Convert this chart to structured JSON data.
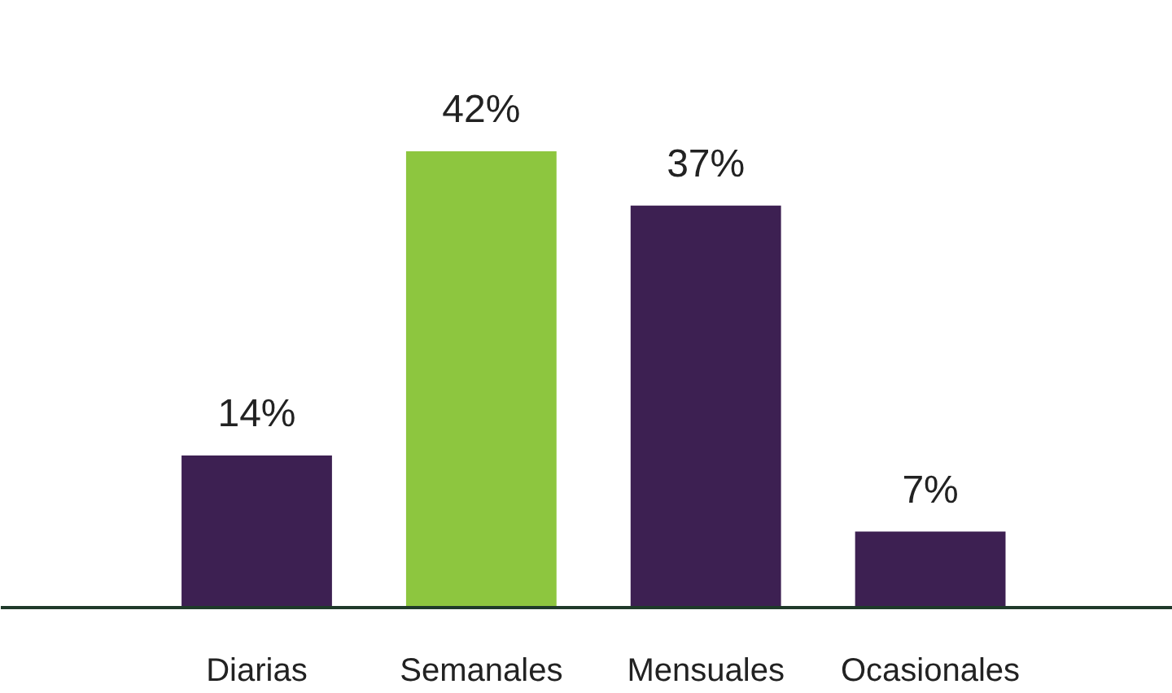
{
  "chart_data": {
    "type": "bar",
    "categories": [
      "Diarias",
      "Semanales",
      "Mensuales",
      "Ocasionales"
    ],
    "values": [
      14,
      42,
      37,
      7
    ],
    "colors": [
      "#3d2052",
      "#8dc63f",
      "#3d2052",
      "#3d2052"
    ],
    "data_labels": true,
    "value_labels": [
      "14%",
      "42%",
      "37%",
      "7%"
    ]
  }
}
